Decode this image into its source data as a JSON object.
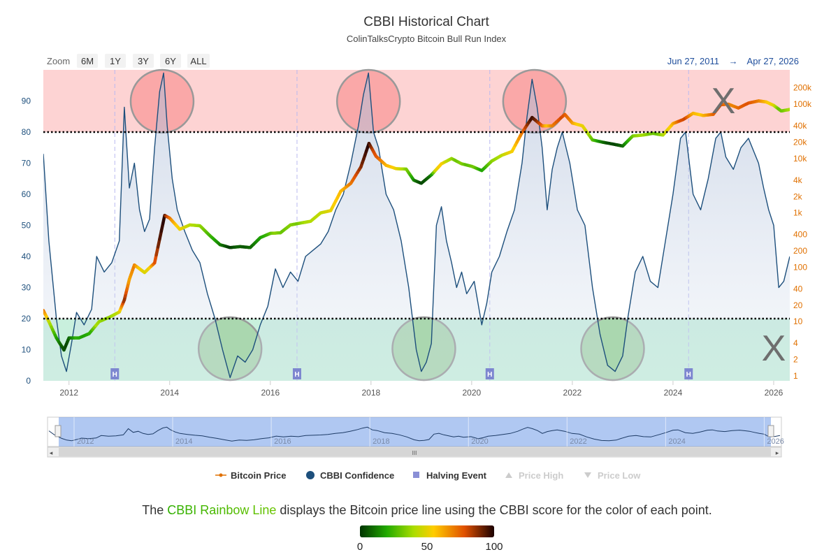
{
  "chart_data": {
    "type": "line",
    "title": "CBBI Historical Chart",
    "subtitle": "ColinTalksCrypto Bitcoin Bull Run Index",
    "zoom": {
      "label": "Zoom",
      "buttons": [
        "6M",
        "1Y",
        "3Y",
        "6Y",
        "ALL"
      ],
      "selected": "ALL"
    },
    "date_range": {
      "from": "Jun 27, 2011",
      "arrow": "→",
      "to": "Apr 27, 2026"
    },
    "x_axis": {
      "ticks": [
        "2012",
        "2014",
        "2016",
        "2018",
        "2020",
        "2022",
        "2024",
        "2026"
      ],
      "range": [
        2011.49,
        2026.32
      ]
    },
    "y_left": {
      "ticks": [
        "0",
        "10",
        "20",
        "30",
        "40",
        "50",
        "60",
        "70",
        "80",
        "90"
      ],
      "range": [
        0,
        100
      ]
    },
    "y_right": {
      "ticks": [
        "1",
        "2",
        "4",
        "10",
        "20",
        "40",
        "100",
        "200",
        "400",
        "1k",
        "2k",
        "4k",
        "10k",
        "20k",
        "40k",
        "100k",
        "200k"
      ],
      "scale": "log",
      "range": [
        1,
        300000
      ]
    },
    "zones": [
      {
        "from": 80,
        "to": 100,
        "color": "#fdd3d3"
      },
      {
        "from": 20,
        "to": 80,
        "color": "#ffffff"
      },
      {
        "from": 0,
        "to": 20,
        "color": "#c9f0dd"
      }
    ],
    "threshold_lines": [
      80,
      20
    ],
    "halvings": [
      {
        "x": 2012.91,
        "label": "H"
      },
      {
        "x": 2016.53,
        "label": "H"
      },
      {
        "x": 2020.36,
        "label": "H"
      },
      {
        "x": 2024.31,
        "label": "H"
      }
    ],
    "circle_markers": {
      "tops": [
        2013.85,
        2017.95,
        2021.25
      ],
      "bottoms": [
        2015.2,
        2019.05,
        2022.8
      ],
      "top_color": "#f9a0a0",
      "bottom_color": "#9fcf9f"
    },
    "x_marks": [
      {
        "x": 2025.0,
        "label": "X",
        "zone": "top"
      },
      {
        "x": 2026.0,
        "label": "X",
        "zone": "bottom"
      }
    ],
    "series": [
      {
        "name": "CBBI Confidence",
        "color": "#1d4f7c",
        "x": [
          2011.49,
          2011.6,
          2011.75,
          2011.85,
          2011.95,
          2012.05,
          2012.15,
          2012.3,
          2012.45,
          2012.55,
          2012.7,
          2012.85,
          2013.0,
          2013.1,
          2013.2,
          2013.3,
          2013.4,
          2013.5,
          2013.6,
          2013.7,
          2013.8,
          2013.88,
          2013.95,
          2014.05,
          2014.15,
          2014.3,
          2014.45,
          2014.6,
          2014.75,
          2014.9,
          2015.05,
          2015.2,
          2015.35,
          2015.5,
          2015.65,
          2015.8,
          2015.95,
          2016.1,
          2016.25,
          2016.4,
          2016.55,
          2016.7,
          2016.85,
          2017.0,
          2017.15,
          2017.3,
          2017.45,
          2017.6,
          2017.75,
          2017.85,
          2017.95,
          2018.05,
          2018.15,
          2018.3,
          2018.45,
          2018.6,
          2018.75,
          2018.9,
          2019.0,
          2019.1,
          2019.2,
          2019.3,
          2019.4,
          2019.5,
          2019.6,
          2019.7,
          2019.8,
          2019.9,
          2020.05,
          2020.2,
          2020.3,
          2020.4,
          2020.55,
          2020.7,
          2020.85,
          2021.0,
          2021.1,
          2021.2,
          2021.3,
          2021.4,
          2021.5,
          2021.6,
          2021.7,
          2021.8,
          2021.95,
          2022.1,
          2022.25,
          2022.4,
          2022.55,
          2022.7,
          2022.85,
          2023.0,
          2023.1,
          2023.25,
          2023.4,
          2023.55,
          2023.7,
          2023.85,
          2024.0,
          2024.15,
          2024.25,
          2024.4,
          2024.55,
          2024.7,
          2024.85,
          2024.95,
          2025.05,
          2025.2,
          2025.35,
          2025.5,
          2025.6,
          2025.7,
          2025.8,
          2025.9,
          2026.0,
          2026.1,
          2026.2,
          2026.32
        ],
        "values": [
          73,
          45,
          20,
          8,
          3,
          12,
          22,
          18,
          23,
          40,
          35,
          38,
          45,
          88,
          62,
          70,
          55,
          48,
          52,
          75,
          93,
          99,
          82,
          65,
          55,
          48,
          42,
          38,
          28,
          20,
          10,
          1,
          8,
          6,
          10,
          18,
          24,
          36,
          30,
          35,
          32,
          40,
          42,
          44,
          48,
          55,
          60,
          70,
          82,
          92,
          99,
          80,
          75,
          60,
          55,
          45,
          30,
          10,
          3,
          6,
          12,
          50,
          56,
          45,
          38,
          30,
          35,
          28,
          32,
          18,
          25,
          35,
          40,
          48,
          55,
          70,
          85,
          97,
          88,
          75,
          55,
          68,
          75,
          80,
          70,
          55,
          50,
          30,
          15,
          5,
          3,
          8,
          20,
          35,
          40,
          32,
          30,
          45,
          60,
          78,
          80,
          60,
          55,
          65,
          78,
          80,
          72,
          68,
          75,
          78,
          74,
          70,
          62,
          55,
          50,
          30,
          32,
          40
        ]
      },
      {
        "name": "Bitcoin Price",
        "color": "#e07000",
        "x": [
          2011.49,
          2011.6,
          2011.75,
          2011.9,
          2012.0,
          2012.2,
          2012.4,
          2012.6,
          2012.8,
          2013.0,
          2013.1,
          2013.2,
          2013.3,
          2013.5,
          2013.7,
          2013.9,
          2014.0,
          2014.2,
          2014.4,
          2014.6,
          2014.8,
          2015.0,
          2015.2,
          2015.4,
          2015.6,
          2015.8,
          2016.0,
          2016.2,
          2016.4,
          2016.6,
          2016.8,
          2017.0,
          2017.2,
          2017.4,
          2017.6,
          2017.8,
          2017.96,
          2018.1,
          2018.3,
          2018.5,
          2018.7,
          2018.85,
          2019.0,
          2019.2,
          2019.4,
          2019.6,
          2019.8,
          2020.0,
          2020.2,
          2020.4,
          2020.6,
          2020.8,
          2021.0,
          2021.2,
          2021.4,
          2021.6,
          2021.85,
          2022.0,
          2022.2,
          2022.4,
          2022.6,
          2022.8,
          2023.0,
          2023.2,
          2023.4,
          2023.6,
          2023.8,
          2024.0,
          2024.2,
          2024.4,
          2024.6,
          2024.8,
          2024.95,
          2025.1,
          2025.3,
          2025.5,
          2025.7,
          2025.85,
          2026.0,
          2026.15,
          2026.32
        ],
        "values": [
          16,
          10,
          5,
          3,
          5,
          5,
          6,
          10,
          12,
          15,
          25,
          60,
          110,
          80,
          120,
          900,
          800,
          500,
          600,
          580,
          380,
          260,
          230,
          240,
          230,
          350,
          420,
          430,
          600,
          650,
          700,
          1000,
          1100,
          2500,
          3500,
          7000,
          19000,
          11000,
          7500,
          6500,
          6400,
          4000,
          3500,
          5000,
          8000,
          10000,
          8000,
          7200,
          6000,
          9000,
          11500,
          13500,
          30000,
          57000,
          40000,
          40000,
          65000,
          45000,
          40000,
          22000,
          20000,
          18500,
          17000,
          26000,
          27000,
          29000,
          27000,
          44000,
          52000,
          68000,
          62000,
          65000,
          98000,
          100000,
          85000,
          105000,
          115000,
          110000,
          95000,
          75000,
          80000
        ]
      }
    ],
    "navigator": {
      "ticks": [
        "2012",
        "2014",
        "2016",
        "2018",
        "2020",
        "2022",
        "2024",
        "2026"
      ],
      "handle_glyph": "III"
    },
    "legend": [
      {
        "label": "Bitcoin Price",
        "symbol": "line-dot",
        "color": "#e07000",
        "enabled": true
      },
      {
        "label": "CBBI Confidence",
        "symbol": "circle",
        "color": "#1d4f7c",
        "enabled": true
      },
      {
        "label": "Halving Event",
        "symbol": "square",
        "color": "#8a8fd6",
        "enabled": true
      },
      {
        "label": "Price High",
        "symbol": "triangle-up",
        "color": "#cccccc",
        "enabled": false
      },
      {
        "label": "Price Low",
        "symbol": "triangle-down",
        "color": "#cccccc",
        "enabled": false
      }
    ],
    "footnote": {
      "prefix": "The ",
      "highlight": "CBBI Rainbow Line",
      "suffix": " displays the Bitcoin price line using the CBBI score for the color of each point."
    },
    "color_scale": {
      "ticks": [
        "0",
        "50",
        "100"
      ],
      "stops": [
        "#003300",
        "#22aa00",
        "#aadd00",
        "#ffcc00",
        "#e05000",
        "#1a0000"
      ]
    }
  }
}
